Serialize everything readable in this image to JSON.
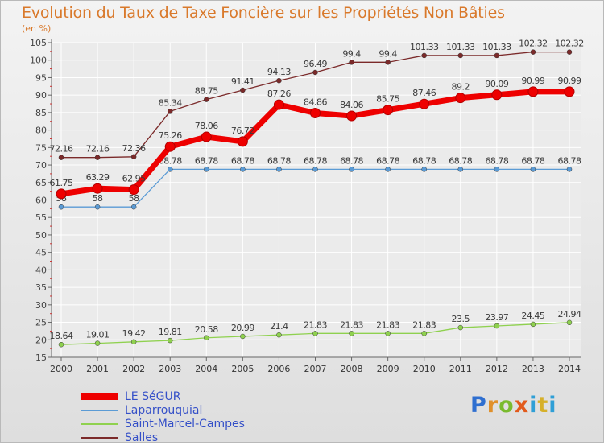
{
  "title": "Evolution du Taux de Taxe Foncière sur les Propriétés Non Bâties",
  "unit_label": "(en %)",
  "brand": {
    "text": "Proxiti",
    "letters": [
      "P",
      "r",
      "o",
      "x",
      "i",
      "t",
      "i"
    ]
  },
  "chart_data": {
    "type": "line",
    "x": [
      "2000",
      "2001",
      "2002",
      "2003",
      "2004",
      "2005",
      "2006",
      "2007",
      "2008",
      "2009",
      "2010",
      "2011",
      "2012",
      "2013",
      "2014"
    ],
    "ylim": [
      15,
      105
    ],
    "yticks": [
      15,
      20,
      25,
      30,
      35,
      40,
      45,
      50,
      55,
      60,
      65,
      70,
      75,
      80,
      85,
      90,
      95,
      100,
      105
    ],
    "grid": true,
    "legend_position": "bottom-left",
    "series": [
      {
        "name": "Salles",
        "color": "#7b2a2a",
        "labels": [
          "72.16",
          "72.16",
          "72.36",
          "85.34",
          "88.75",
          "91.41",
          "94.13",
          "96.49",
          "99.4",
          "99.4",
          "101.33",
          "101.33",
          "101.33",
          "102.32",
          "102.32"
        ],
        "values": [
          72.16,
          72.16,
          72.36,
          85.34,
          88.75,
          91.41,
          94.13,
          96.49,
          99.4,
          99.4,
          101.33,
          101.33,
          101.33,
          102.32,
          102.32
        ]
      },
      {
        "name": "Laparrouquial",
        "color": "#5b9bd5",
        "labels": [
          "58",
          "58",
          "58",
          "68.78",
          "68.78",
          "68.78",
          "68.78",
          "68.78",
          "68.78",
          "68.78",
          "68.78",
          "68.78",
          "68.78",
          "68.78",
          "68.78"
        ],
        "values": [
          58,
          58,
          58,
          68.78,
          68.78,
          68.78,
          68.78,
          68.78,
          68.78,
          68.78,
          68.78,
          68.78,
          68.78,
          68.78,
          68.78
        ]
      },
      {
        "name": "Saint-Marcel-Campes",
        "color": "#8fd14f",
        "labels": [
          "18.64",
          "19.01",
          "19.42",
          "19.81",
          "20.58",
          "20.99",
          "21.4",
          "21.83",
          "21.83",
          "21.83",
          "21.83",
          "23.5",
          "23.97",
          "24.45",
          "24.94"
        ],
        "values": [
          18.64,
          19.01,
          19.42,
          19.81,
          20.58,
          20.99,
          21.4,
          21.83,
          21.83,
          21.83,
          21.83,
          23.5,
          23.97,
          24.45,
          24.94
        ]
      },
      {
        "name": "LE SéGUR",
        "color": "#ee0000",
        "labels": [
          "61.75",
          "63.29",
          "62.95",
          "75.26",
          "78.06",
          "76.72",
          "87.26",
          "84.86",
          "84.06",
          "85.75",
          "87.46",
          "89.2",
          "90.09",
          "90.99",
          "90.99"
        ],
        "values": [
          61.75,
          63.29,
          62.95,
          75.26,
          78.06,
          76.72,
          87.26,
          84.86,
          84.06,
          85.75,
          87.46,
          89.2,
          90.09,
          90.99,
          90.99
        ]
      }
    ],
    "legend_order": [
      "LE SéGUR",
      "Laparrouquial",
      "Saint-Marcel-Campes",
      "Salles"
    ]
  }
}
